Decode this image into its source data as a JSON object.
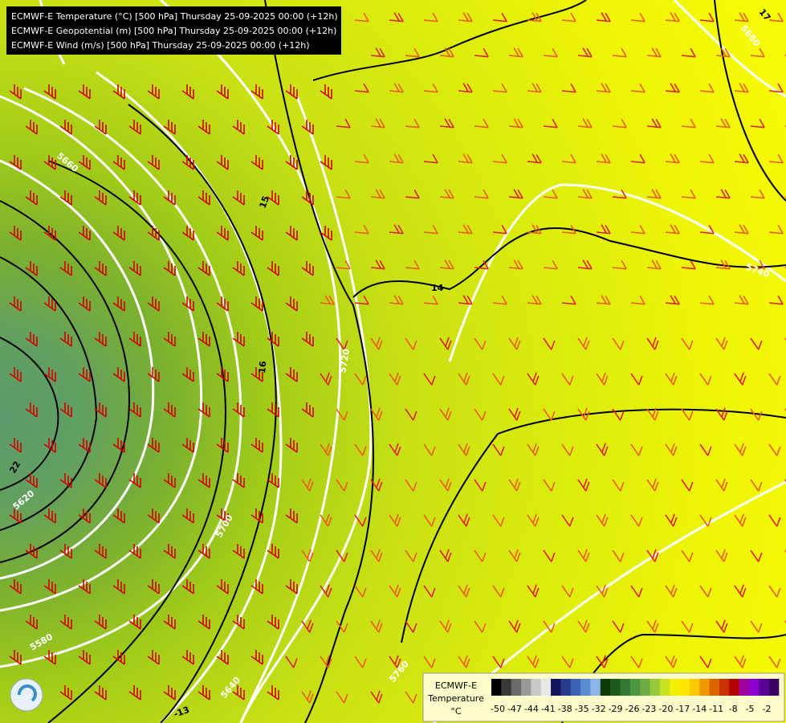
{
  "header": {
    "lines": [
      "ECMWF-E Temperature (°C) [500 hPa] Thursday 25-09-2025 00:00 (+12h)",
      "ECMWF-E Geopotential (m) [500 hPa] Thursday 25-09-2025 00:00 (+12h)",
      "ECMWF-E Wind (m/s) [500 hPa] Thursday 25-09-2025 00:00 (+12h)"
    ]
  },
  "contour_labels": [
    "5660",
    "15",
    "14",
    "5740",
    "5720",
    "16",
    "5700",
    "5620",
    "22",
    "5580",
    "5640",
    "5760",
    "-13",
    "17",
    "5680"
  ],
  "legend": {
    "title": [
      "ECMWF-E",
      "Temperature",
      "°C"
    ],
    "colors": [
      "#000000",
      "#3a3a3a",
      "#6a6a6a",
      "#9a9a9a",
      "#c8c8c8",
      "#e8e8e8",
      "#14145a",
      "#283c8c",
      "#3c64b4",
      "#5a8cd2",
      "#8cb4e6",
      "#0a3c0a",
      "#1e5a1e",
      "#327832",
      "#4b9640",
      "#6eaa46",
      "#96c83c",
      "#c8e11e",
      "#f0f000",
      "#ffe600",
      "#ffc800",
      "#f09600",
      "#dc6400",
      "#c83200",
      "#b40000",
      "#a000a0",
      "#8c00d2",
      "#5a0096",
      "#3c0064"
    ],
    "ticks": [
      "-50",
      "-47",
      "-44",
      "-41",
      "-38",
      "-35",
      "-32",
      "-29",
      "-26",
      "-23",
      "-20",
      "-17",
      "-14",
      "-11",
      "-8",
      "-5",
      "-2"
    ]
  }
}
